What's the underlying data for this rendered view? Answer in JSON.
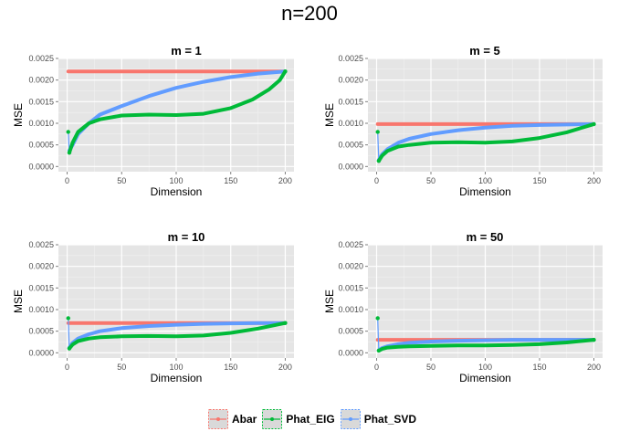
{
  "title": "n=200",
  "legend": [
    {
      "label": "Abar",
      "color": "#F8766D"
    },
    {
      "label": "Phat_EIG",
      "color": "#00BA38"
    },
    {
      "label": "Phat_SVD",
      "color": "#619CFF"
    }
  ],
  "chart_data": [
    {
      "type": "line",
      "title": "m = 1",
      "xlabel": "Dimension",
      "ylabel": "MSE",
      "xlim": [
        -8,
        208
      ],
      "ylim": [
        -0.00012,
        0.0025
      ],
      "xticks": [
        0,
        50,
        100,
        150,
        200
      ],
      "yticks": [
        0.0,
        0.0005,
        0.001,
        0.0015,
        0.002,
        0.0025
      ],
      "ytick_labels": [
        "0.0000",
        "0.0005",
        "0.0010",
        "0.0015",
        "0.0020",
        "0.0025"
      ],
      "grid": true,
      "series": [
        {
          "name": "Abar",
          "x": [
            1,
            200
          ],
          "y": [
            0.0022,
            0.0022
          ]
        },
        {
          "name": "Phat_EIG",
          "x": [
            1,
            2,
            5,
            10,
            20,
            30,
            50,
            75,
            100,
            125,
            150,
            170,
            185,
            195,
            200
          ],
          "y": [
            0.0008,
            0.00032,
            0.00055,
            0.0008,
            0.001,
            0.00109,
            0.00118,
            0.0012,
            0.00119,
            0.00122,
            0.00135,
            0.00155,
            0.00178,
            0.002,
            0.0022
          ]
        },
        {
          "name": "Phat_SVD",
          "x": [
            2,
            5,
            10,
            20,
            30,
            50,
            75,
            100,
            125,
            150,
            175,
            200
          ],
          "y": [
            0.00037,
            0.0005,
            0.00075,
            0.001,
            0.0012,
            0.0014,
            0.00163,
            0.00182,
            0.00196,
            0.00207,
            0.00215,
            0.0022
          ]
        }
      ]
    },
    {
      "type": "line",
      "title": "m = 5",
      "xlabel": "Dimension",
      "ylabel": "MSE",
      "xlim": [
        -8,
        208
      ],
      "ylim": [
        -0.00012,
        0.0025
      ],
      "xticks": [
        0,
        50,
        100,
        150,
        200
      ],
      "yticks": [
        0.0,
        0.0005,
        0.001,
        0.0015,
        0.002,
        0.0025
      ],
      "ytick_labels": [
        "0.0000",
        "0.0005",
        "0.0010",
        "0.0015",
        "0.0020",
        "0.0025"
      ],
      "grid": true,
      "series": [
        {
          "name": "Abar",
          "x": [
            1,
            200
          ],
          "y": [
            0.00098,
            0.00098
          ]
        },
        {
          "name": "Phat_EIG",
          "x": [
            1,
            2,
            5,
            10,
            20,
            30,
            50,
            75,
            100,
            125,
            150,
            175,
            200
          ],
          "y": [
            0.0008,
            0.00013,
            0.00025,
            0.00036,
            0.00046,
            0.0005,
            0.00055,
            0.00056,
            0.00055,
            0.00058,
            0.00066,
            0.00079,
            0.00098
          ]
        },
        {
          "name": "Phat_SVD",
          "x": [
            2,
            5,
            10,
            20,
            30,
            50,
            75,
            100,
            125,
            150,
            175,
            200
          ],
          "y": [
            0.00015,
            0.00028,
            0.0004,
            0.00055,
            0.00064,
            0.00075,
            0.00084,
            0.0009,
            0.00094,
            0.00096,
            0.00097,
            0.00098
          ]
        }
      ]
    },
    {
      "type": "line",
      "title": "m = 10",
      "xlabel": "Dimension",
      "ylabel": "MSE",
      "xlim": [
        -8,
        208
      ],
      "ylim": [
        -0.00012,
        0.0025
      ],
      "xticks": [
        0,
        50,
        100,
        150,
        200
      ],
      "yticks": [
        0.0,
        0.0005,
        0.001,
        0.0015,
        0.002,
        0.0025
      ],
      "ytick_labels": [
        "0.0000",
        "0.0005",
        "0.0010",
        "0.0015",
        "0.0020",
        "0.0025"
      ],
      "grid": true,
      "series": [
        {
          "name": "Abar",
          "x": [
            1,
            200
          ],
          "y": [
            0.00069,
            0.00069
          ]
        },
        {
          "name": "Phat_EIG",
          "x": [
            1,
            2,
            5,
            10,
            20,
            30,
            50,
            75,
            100,
            125,
            150,
            175,
            200
          ],
          "y": [
            0.0008,
            0.0001,
            0.00019,
            0.00027,
            0.00033,
            0.00036,
            0.00038,
            0.00039,
            0.00038,
            0.0004,
            0.00046,
            0.00056,
            0.00069
          ]
        },
        {
          "name": "Phat_SVD",
          "x": [
            2,
            5,
            10,
            20,
            30,
            50,
            75,
            100,
            125,
            150,
            175,
            200
          ],
          "y": [
            0.00012,
            0.00023,
            0.00033,
            0.00043,
            0.0005,
            0.00057,
            0.00062,
            0.00065,
            0.00067,
            0.00068,
            0.00069,
            0.00069
          ]
        }
      ]
    },
    {
      "type": "line",
      "title": "m = 50",
      "xlabel": "Dimension",
      "ylabel": "MSE",
      "xlim": [
        -8,
        208
      ],
      "ylim": [
        -0.00012,
        0.0025
      ],
      "xticks": [
        0,
        50,
        100,
        150,
        200
      ],
      "yticks": [
        0.0,
        0.0005,
        0.001,
        0.0015,
        0.002,
        0.0025
      ],
      "ytick_labels": [
        "0.0000",
        "0.0005",
        "0.0010",
        "0.0015",
        "0.0020",
        "0.0025"
      ],
      "grid": true,
      "series": [
        {
          "name": "Abar",
          "x": [
            1,
            200
          ],
          "y": [
            0.0003,
            0.0003
          ]
        },
        {
          "name": "Phat_EIG",
          "x": [
            1,
            2,
            5,
            10,
            20,
            30,
            50,
            75,
            100,
            125,
            150,
            175,
            200
          ],
          "y": [
            0.0008,
            5e-05,
            9e-05,
            0.00012,
            0.00014,
            0.00015,
            0.00016,
            0.00017,
            0.00017,
            0.00018,
            0.0002,
            0.00024,
            0.0003
          ]
        },
        {
          "name": "Phat_SVD",
          "x": [
            2,
            5,
            10,
            20,
            30,
            50,
            75,
            100,
            125,
            150,
            175,
            200
          ],
          "y": [
            6e-05,
            0.00011,
            0.00015,
            0.0002,
            0.00023,
            0.00026,
            0.00028,
            0.00029,
            0.0003,
            0.0003,
            0.0003,
            0.0003
          ]
        }
      ]
    }
  ]
}
